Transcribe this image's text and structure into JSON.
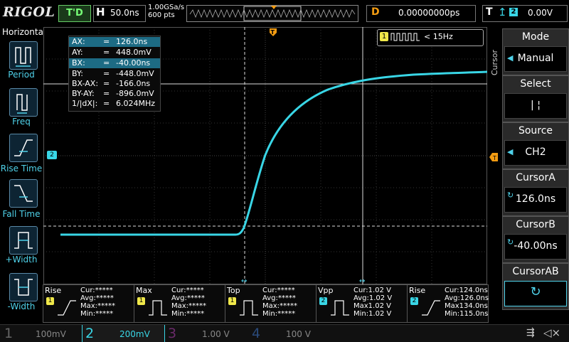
{
  "header": {
    "brand": "RIGOL",
    "trigger_status": "T'D",
    "horizontal_letter": "H",
    "timebase": "50.0ns",
    "sample_rate": "1.00GSa/s",
    "memory_depth": "600 pts",
    "delay_letter": "D",
    "delay_value": "0.00000000ps",
    "trigger_letter": "T",
    "trigger_source": "2",
    "trigger_level": "0.00V"
  },
  "left_menu": {
    "title": "Horizontal",
    "items": [
      {
        "label": "Period"
      },
      {
        "label": "Freq"
      },
      {
        "label": "Rise Time"
      },
      {
        "label": "Fall Time"
      },
      {
        "label": "+Width"
      },
      {
        "label": "-Width"
      }
    ]
  },
  "cursor_readout": {
    "rows": [
      {
        "name": "AX:",
        "eq": "=",
        "value": "126.0ns"
      },
      {
        "name": "AY:",
        "eq": "=",
        "value": "448.0mV"
      },
      {
        "name": "BX:",
        "eq": "=",
        "value": "-40.00ns"
      },
      {
        "name": "BY:",
        "eq": "=",
        "value": "-448.0mV"
      },
      {
        "name": "BX-AX:",
        "eq": "=",
        "value": "-166.0ns"
      },
      {
        "name": "BY-AY:",
        "eq": "=",
        "value": "-896.0mV"
      },
      {
        "name": "1/|dX|:",
        "eq": "=",
        "value": "6.024MHz"
      }
    ]
  },
  "frequency_counter": {
    "channel": "1",
    "value": "< 15Hz"
  },
  "channel_marker": {
    "label": "2"
  },
  "right_menu": {
    "side_label": "Cursor",
    "items": [
      {
        "title": "Mode",
        "value": "Manual"
      },
      {
        "title": "Select",
        "value": "|    ¦"
      },
      {
        "title": "Source",
        "value": "CH2"
      },
      {
        "title": "CursorA",
        "value": "126.0ns"
      },
      {
        "title": "CursorB",
        "value": "-40.00ns"
      },
      {
        "title": "CursorAB",
        "value": "↻"
      }
    ]
  },
  "measurements": [
    {
      "name": "Rise",
      "ch": "1",
      "cur": "Cur:*****",
      "avg": "Avg:*****",
      "max": "Max:*****",
      "min": "Min:*****"
    },
    {
      "name": "Max",
      "ch": "1",
      "cur": "Cur:*****",
      "avg": "Avg:*****",
      "max": "Max:*****",
      "min": "Min:*****"
    },
    {
      "name": "Top",
      "ch": "1",
      "cur": "Cur:*****",
      "avg": "Avg:*****",
      "max": "Max:*****",
      "min": "Min:*****"
    },
    {
      "name": "Vpp",
      "ch": "2",
      "cur": "Cur:1.02 V",
      "avg": "Avg:1.02 V",
      "max": "Max1.02 V",
      "min": "Min:1.02 V"
    },
    {
      "name": "Rise",
      "ch": "2",
      "cur": "Cur:124.0ns",
      "avg": "Avg:126.0ns",
      "max": "Max134.0ns",
      "min": "Min:115.0ns"
    }
  ],
  "channels": [
    {
      "num": "1",
      "scale": "100mV"
    },
    {
      "num": "2",
      "scale": "200mV"
    },
    {
      "num": "3",
      "scale": "1.00 V"
    },
    {
      "num": "4",
      "scale": "100 V"
    }
  ],
  "colors": {
    "ch1": "#f0e84a",
    "ch2": "#39d6e6",
    "ch3": "#d64ad6",
    "ch4": "#3a7bd5",
    "trigger": "#f39c12"
  }
}
